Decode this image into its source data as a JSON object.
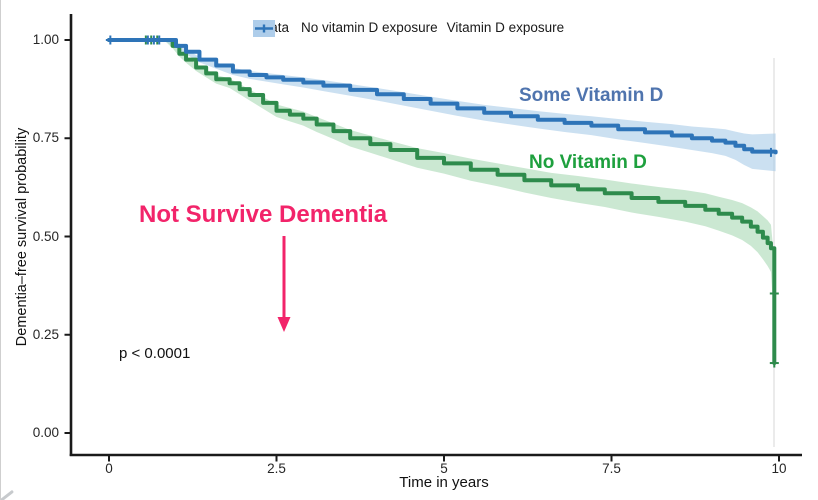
{
  "figure": {
    "p_value": "p < 0.0001",
    "legend": {
      "title": "Strata",
      "items": [
        {
          "label": "No vitamin D exposure",
          "line_color": "#2e8b4c",
          "fill_color": "#b9ddc2"
        },
        {
          "label": "Vitamin D exposure",
          "line_color": "#2e74b8",
          "fill_color": "#aecdea"
        }
      ]
    },
    "annotations": {
      "some_label": "Some Vitamin D",
      "some_color": "#4f74ae",
      "no_label": "No Vitamin D",
      "no_color": "#1ea03e",
      "not_survive_label": "Not Survive Dementia",
      "not_survive_color": "#f2246a",
      "arrow_color": "#f2246a",
      "p_value_color": "#111111"
    }
  },
  "chart_data": {
    "type": "line",
    "subtype": "kaplan-meier-survival",
    "title": "",
    "xlabel": "Time in years",
    "ylabel": "Dementia–free survival probability",
    "xlim": [
      0,
      10
    ],
    "ylim": [
      0,
      1
    ],
    "x_ticks": [
      "0",
      "2.5",
      "5",
      "7.5",
      "10"
    ],
    "x_tick_values": [
      0,
      2.5,
      5,
      7.5,
      10
    ],
    "y_ticks": [
      "0.00",
      "0.25",
      "0.50",
      "0.75",
      "1.00"
    ],
    "y_tick_values": [
      0,
      0.25,
      0.5,
      0.75,
      1
    ],
    "grid": false,
    "legend_position": "top",
    "p_value": "p < 0.0001",
    "series": [
      {
        "name": "No vitamin D exposure",
        "color": "#2e8b4c",
        "band_color": "#a9d8b4",
        "t": [
          0,
          0.85,
          0.95,
          1.05,
          1.15,
          1.3,
          1.45,
          1.6,
          1.8,
          1.95,
          2.1,
          2.3,
          2.5,
          2.7,
          2.9,
          3.1,
          3.35,
          3.6,
          3.9,
          4.2,
          4.6,
          5.0,
          5.4,
          5.8,
          6.2,
          6.6,
          7.0,
          7.4,
          7.8,
          8.2,
          8.6,
          8.9,
          9.1,
          9.3,
          9.45,
          9.58,
          9.68,
          9.76,
          9.83,
          9.88,
          9.93,
          9.93
        ],
        "p": [
          1.0,
          1.0,
          0.985,
          0.965,
          0.95,
          0.93,
          0.915,
          0.9,
          0.89,
          0.875,
          0.86,
          0.84,
          0.82,
          0.81,
          0.8,
          0.785,
          0.768,
          0.75,
          0.735,
          0.72,
          0.7,
          0.686,
          0.67,
          0.657,
          0.643,
          0.63,
          0.62,
          0.61,
          0.598,
          0.588,
          0.578,
          0.568,
          0.558,
          0.548,
          0.538,
          0.525,
          0.512,
          0.497,
          0.483,
          0.47,
          0.355,
          0.178
        ],
        "ci_halfwidth": [
          0.004,
          0.005,
          0.006,
          0.007,
          0.008,
          0.009,
          0.01,
          0.011,
          0.012,
          0.013,
          0.014,
          0.015,
          0.016,
          0.017,
          0.018,
          0.019,
          0.02,
          0.021,
          0.022,
          0.023,
          0.025,
          0.026,
          0.028,
          0.029,
          0.031,
          0.032,
          0.034,
          0.035,
          0.037,
          0.038,
          0.04,
          0.042,
          0.043,
          0.045,
          0.047,
          0.049,
          0.052,
          0.055,
          0.058,
          0.06,
          0.085,
          0.1
        ],
        "censor_marks": [
          [
            0.55,
            1.0
          ],
          [
            0.63,
            1.0
          ],
          [
            0.72,
            1.0
          ],
          [
            9.93,
            0.355
          ],
          [
            9.93,
            0.178
          ]
        ]
      },
      {
        "name": "Vitamin D exposure",
        "color": "#2e74b8",
        "band_color": "#a9cbe8",
        "t": [
          0,
          0.85,
          1.0,
          1.15,
          1.35,
          1.6,
          1.85,
          2.1,
          2.35,
          2.6,
          2.9,
          3.2,
          3.6,
          4.0,
          4.4,
          4.8,
          5.2,
          5.6,
          6.0,
          6.4,
          6.8,
          7.2,
          7.6,
          8.0,
          8.4,
          8.7,
          9.0,
          9.2,
          9.35,
          9.48,
          9.6,
          9.95
        ],
        "p": [
          1.0,
          1.0,
          0.985,
          0.97,
          0.95,
          0.935,
          0.92,
          0.911,
          0.905,
          0.899,
          0.892,
          0.884,
          0.873,
          0.862,
          0.85,
          0.838,
          0.826,
          0.815,
          0.806,
          0.797,
          0.789,
          0.782,
          0.773,
          0.765,
          0.757,
          0.75,
          0.744,
          0.739,
          0.731,
          0.722,
          0.716,
          0.714
        ],
        "ci_halfwidth": [
          0.003,
          0.004,
          0.005,
          0.006,
          0.007,
          0.008,
          0.009,
          0.01,
          0.011,
          0.012,
          0.013,
          0.014,
          0.015,
          0.016,
          0.017,
          0.018,
          0.019,
          0.02,
          0.021,
          0.022,
          0.023,
          0.024,
          0.026,
          0.027,
          0.029,
          0.03,
          0.032,
          0.034,
          0.036,
          0.04,
          0.044,
          0.048
        ],
        "censor_marks": [
          [
            0.02,
            1.0
          ],
          [
            0.58,
            1.0
          ],
          [
            0.67,
            1.0
          ],
          [
            0.75,
            1.0
          ],
          [
            9.88,
            0.714
          ]
        ]
      }
    ]
  }
}
